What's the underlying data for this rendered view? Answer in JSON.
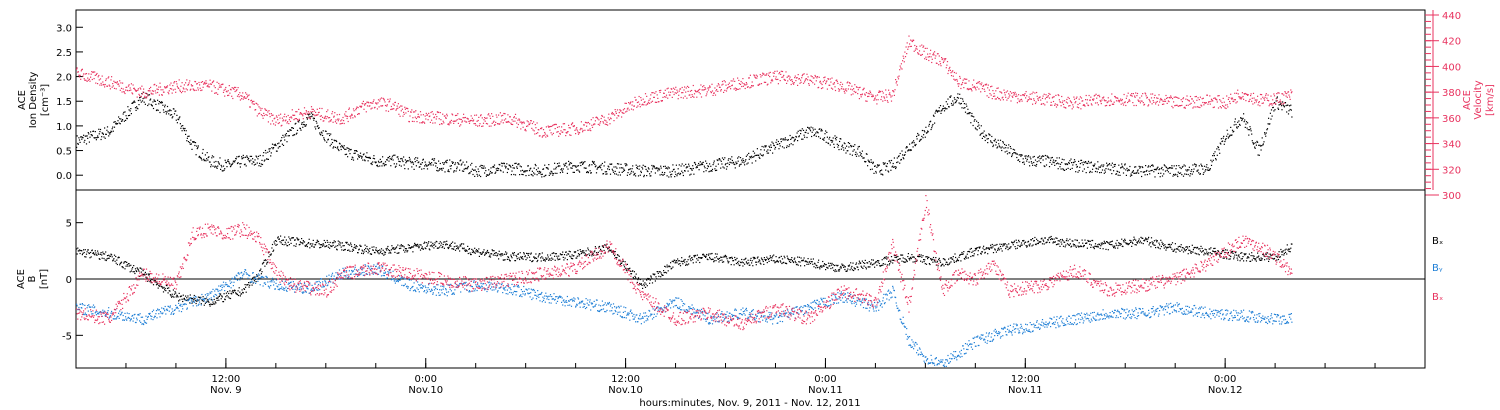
{
  "colors": {
    "black": "#000000",
    "red": "#e8335f",
    "blue": "#1f7fd6"
  },
  "chart_data": [
    {
      "type": "scatter",
      "panel": "top",
      "ylabel_left": [
        "ACE",
        "Ion Density",
        "[cm⁻³]"
      ],
      "ylabel_right": [
        "ACE",
        "Velocity",
        "[km/s]"
      ],
      "ylim_left": [
        -0.3,
        3.35
      ],
      "ylim_right": [
        300,
        440
      ],
      "yticks_left": [
        "0.0",
        "0.5",
        "1.0",
        "1.5",
        "2.0",
        "2.5",
        "3.0"
      ],
      "yticks_right": [
        "300",
        "320",
        "340",
        "360",
        "380",
        "400",
        "420",
        "440"
      ],
      "series": [
        {
          "axis": "left",
          "color": "#000000",
          "x_hours": [
            0,
            2,
            4,
            6,
            7,
            8,
            9,
            10,
            11,
            12,
            13,
            14,
            15,
            16,
            17,
            18,
            19,
            20,
            21,
            22,
            23,
            24,
            26,
            28,
            30,
            32,
            34,
            36,
            38,
            40,
            42,
            44,
            45,
            46,
            47,
            48,
            49,
            50,
            51,
            52,
            53,
            54,
            55,
            56,
            57,
            58,
            60,
            62,
            64,
            66,
            68,
            69,
            70,
            71,
            72,
            73
          ],
          "values": [
            0.7,
            0.9,
            1.6,
            1.2,
            0.6,
            0.3,
            0.2,
            0.3,
            0.3,
            0.6,
            0.9,
            1.2,
            0.8,
            0.5,
            0.4,
            0.3,
            0.3,
            0.25,
            0.25,
            0.2,
            0.2,
            0.1,
            0.15,
            0.1,
            0.2,
            0.15,
            0.1,
            0.1,
            0.2,
            0.3,
            0.6,
            0.9,
            0.8,
            0.6,
            0.5,
            0.1,
            0.2,
            0.6,
            0.9,
            1.4,
            1.6,
            1.0,
            0.7,
            0.5,
            0.3,
            0.3,
            0.2,
            0.15,
            0.1,
            0.1,
            0.15,
            0.8,
            1.2,
            0.5,
            1.5,
            1.3
          ]
        },
        {
          "axis": "right",
          "color": "#e8335f",
          "x_hours": [
            0,
            2,
            4,
            6,
            8,
            10,
            11,
            12,
            13,
            14,
            15,
            16,
            17,
            18,
            19,
            20,
            22,
            24,
            26,
            28,
            30,
            32,
            34,
            36,
            38,
            40,
            42,
            44,
            46,
            47,
            48,
            49,
            50,
            51,
            52,
            53,
            54,
            55,
            56,
            58,
            60,
            62,
            64,
            66,
            68,
            69,
            70,
            71,
            72,
            73
          ],
          "values": [
            395,
            388,
            380,
            385,
            385,
            378,
            365,
            358,
            362,
            365,
            362,
            360,
            368,
            372,
            370,
            362,
            360,
            358,
            360,
            350,
            352,
            360,
            375,
            380,
            382,
            388,
            392,
            390,
            385,
            380,
            376,
            378,
            420,
            410,
            405,
            388,
            385,
            380,
            378,
            375,
            372,
            375,
            375,
            372,
            374,
            372,
            380,
            374,
            375,
            378
          ]
        }
      ]
    },
    {
      "type": "scatter",
      "panel": "bottom",
      "ylabel": [
        "ACE",
        "B",
        "[nT]"
      ],
      "ylim": [
        -7.9,
        7.9
      ],
      "yticks": [
        "-5",
        "0",
        "5"
      ],
      "legend": [
        "Bₓ",
        "Bᵧ",
        "Bₓ"
      ],
      "series": [
        {
          "name": "Bₓ",
          "color": "#000000",
          "x_hours": [
            0,
            2,
            4,
            6,
            8,
            10,
            11,
            12,
            14,
            16,
            18,
            20,
            22,
            24,
            26,
            28,
            30,
            32,
            34,
            36,
            38,
            40,
            42,
            44,
            46,
            48,
            50,
            52,
            54,
            56,
            58,
            60,
            62,
            64,
            66,
            68,
            70,
            72,
            73
          ],
          "values": [
            2.5,
            2.0,
            0.5,
            -1.5,
            -2.0,
            -1.0,
            0.5,
            3.5,
            3.2,
            3.0,
            2.5,
            2.8,
            3.2,
            2.5,
            2.0,
            2.0,
            2.2,
            2.8,
            -0.5,
            1.5,
            2.0,
            1.5,
            1.8,
            1.5,
            1.0,
            1.5,
            2.0,
            1.5,
            2.5,
            3.0,
            3.5,
            3.2,
            3.0,
            3.5,
            2.8,
            2.5,
            2.0,
            2.0,
            3.0
          ]
        },
        {
          "name": "Bᵧ",
          "color": "#1f7fd6",
          "x_hours": [
            0,
            2,
            4,
            6,
            8,
            10,
            12,
            14,
            16,
            18,
            20,
            22,
            24,
            26,
            28,
            30,
            32,
            34,
            36,
            38,
            40,
            42,
            44,
            46,
            47,
            48,
            49,
            50,
            51,
            52,
            53,
            54,
            55,
            56,
            58,
            60,
            62,
            64,
            66,
            68,
            70,
            72,
            73
          ],
          "values": [
            -2.5,
            -3.0,
            -3.5,
            -2.5,
            -1.5,
            0.5,
            -0.5,
            -0.8,
            0.5,
            1.0,
            -0.5,
            -1.0,
            -0.5,
            -0.8,
            -1.5,
            -2.0,
            -2.5,
            -3.5,
            -2.0,
            -3.5,
            -3.0,
            -3.5,
            -2.5,
            -1.5,
            -2.0,
            -2.5,
            -1.0,
            -5.5,
            -7.0,
            -7.5,
            -6.5,
            -5.5,
            -5.0,
            -4.5,
            -4.0,
            -3.5,
            -3.0,
            -3.0,
            -2.5,
            -3.0,
            -3.2,
            -3.5,
            -3.5
          ]
        },
        {
          "name": "Bₓ",
          "color": "#e8335f",
          "x_hours": [
            0,
            2,
            4,
            6,
            7,
            8,
            9,
            10,
            11,
            12,
            13,
            14,
            15,
            16,
            18,
            20,
            22,
            24,
            26,
            28,
            30,
            32,
            34,
            36,
            38,
            40,
            42,
            44,
            46,
            48,
            49,
            50,
            51,
            52,
            53,
            54,
            55,
            56,
            58,
            60,
            62,
            64,
            66,
            68,
            70,
            71,
            72,
            73
          ],
          "values": [
            -3.0,
            -3.5,
            0.5,
            -0.5,
            4.0,
            4.5,
            4.0,
            4.5,
            3.5,
            0.5,
            -0.5,
            -0.8,
            -1.0,
            0.5,
            1.0,
            0.5,
            0.0,
            -0.5,
            0.0,
            0.5,
            1.0,
            3.0,
            -1.5,
            -3.5,
            -3.0,
            -4.0,
            -2.5,
            -3.5,
            -1.0,
            -2.0,
            3.0,
            -2.5,
            7.0,
            -1.0,
            0.5,
            0.0,
            1.5,
            -1.0,
            -0.5,
            0.8,
            -1.0,
            -0.5,
            0.0,
            1.5,
            3.5,
            3.0,
            2.0,
            0.5
          ]
        }
      ]
    },
    {
      "type": "axis",
      "xlabel": "hours:minutes, Nov.  9, 2011 - Nov. 12, 2011",
      "xlim_hours": [
        0,
        81
      ],
      "major_ticks": [
        {
          "x_hours": 9,
          "time": "12:00",
          "day": "Nov. 9"
        },
        {
          "x_hours": 21,
          "time": "0:00",
          "day": "Nov.10"
        },
        {
          "x_hours": 33,
          "time": "12:00",
          "day": "Nov.10"
        },
        {
          "x_hours": 45,
          "time": "0:00",
          "day": "Nov.11"
        },
        {
          "x_hours": 57,
          "time": "12:00",
          "day": "Nov.11"
        },
        {
          "x_hours": 69,
          "time": "0:00",
          "day": "Nov.12"
        }
      ]
    }
  ]
}
